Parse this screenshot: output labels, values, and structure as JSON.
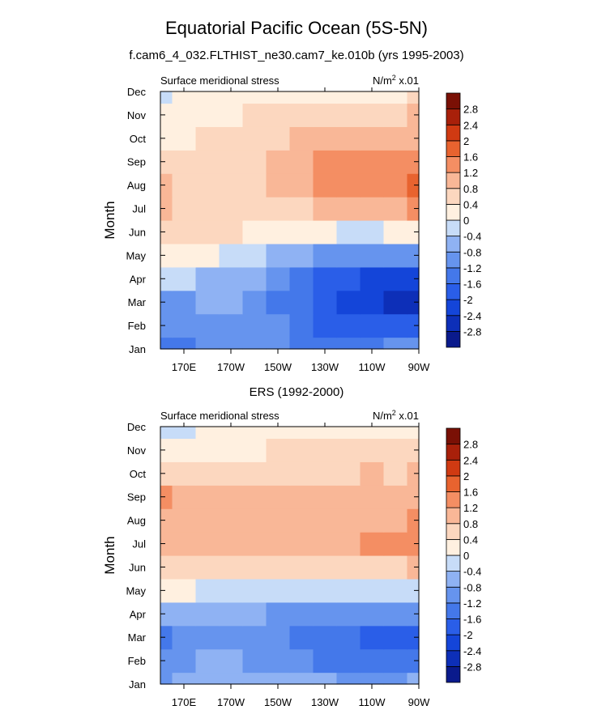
{
  "page": {
    "title": "Equatorial Pacific Ocean (5S-5N)",
    "subtitle": "f.cam6_4_032.FLTHIST_ne30.cam7_ke.010b (yrs 1995-2003)"
  },
  "chart_data": [
    {
      "type": "heatmap",
      "panel_id": "panel-1",
      "title": "f.cam6_4_032.FLTHIST_ne30.cam7_ke.010b (yrs 1995-2003)",
      "left_label": "Surface meridional stress",
      "units_label": "N/m",
      "units_sup": "2",
      "units_suffix": " x.01",
      "ylabel": "Month",
      "xlabel": "",
      "x": [
        160,
        170,
        180,
        190,
        200,
        210,
        220,
        230,
        240,
        250,
        260,
        270
      ],
      "xlim": [
        160,
        270
      ],
      "x_ticks": [
        170,
        190,
        210,
        230,
        250,
        270
      ],
      "x_tick_labels": [
        "170E",
        "170W",
        "150W",
        "130W",
        "110W",
        "90W"
      ],
      "y_tick_labels": [
        "Jan",
        "Feb",
        "Mar",
        "Apr",
        "May",
        "Jun",
        "Jul",
        "Aug",
        "Sep",
        "Oct",
        "Nov",
        "Dec"
      ],
      "ylim": [
        1,
        12
      ],
      "values": [
        [
          -1.4,
          -1.3,
          -1.0,
          -0.9,
          -0.9,
          -1.1,
          -1.3,
          -1.4,
          -1.3,
          -1.3,
          -1.2,
          -1.2
        ],
        [
          -1.2,
          -1.0,
          -0.9,
          -0.9,
          -1.0,
          -1.2,
          -1.5,
          -1.7,
          -1.8,
          -1.9,
          -2.0,
          -2.0
        ],
        [
          -0.9,
          -0.9,
          -0.8,
          -0.8,
          -0.9,
          -1.3,
          -1.6,
          -1.9,
          -2.1,
          -2.3,
          -2.5,
          -2.7
        ],
        [
          -0.3,
          -0.4,
          -0.5,
          -0.6,
          -0.8,
          -1.2,
          -1.5,
          -1.8,
          -2.0,
          -2.1,
          -2.2,
          -2.2
        ],
        [
          0.3,
          0.2,
          0.0,
          -0.1,
          -0.3,
          -0.5,
          -0.7,
          -0.9,
          -1.0,
          -1.1,
          -1.1,
          -1.0
        ],
        [
          0.6,
          0.6,
          0.5,
          0.4,
          0.3,
          0.2,
          0.1,
          0.0,
          -0.1,
          -0.1,
          0.0,
          0.2
        ],
        [
          0.8,
          0.7,
          0.7,
          0.6,
          0.6,
          0.6,
          0.7,
          0.8,
          0.9,
          1.0,
          1.1,
          1.3
        ],
        [
          0.9,
          0.7,
          0.7,
          0.6,
          0.6,
          0.8,
          1.0,
          1.2,
          1.3,
          1.4,
          1.5,
          1.7
        ],
        [
          0.7,
          0.6,
          0.6,
          0.6,
          0.6,
          0.9,
          1.1,
          1.2,
          1.3,
          1.3,
          1.3,
          1.5
        ],
        [
          0.3,
          0.3,
          0.4,
          0.4,
          0.5,
          0.7,
          0.8,
          0.9,
          0.9,
          0.8,
          0.9,
          1.0
        ],
        [
          0.2,
          0.2,
          0.3,
          0.3,
          0.4,
          0.4,
          0.5,
          0.5,
          0.5,
          0.5,
          0.5,
          0.8
        ],
        [
          -0.1,
          0.1,
          0.2,
          0.2,
          0.3,
          0.3,
          0.3,
          0.3,
          0.3,
          0.3,
          0.3,
          0.4
        ]
      ],
      "colorbar": {
        "levels": [
          -2.8,
          -2.4,
          -2,
          -1.6,
          -1.2,
          -0.8,
          -0.4,
          0,
          0.4,
          0.8,
          1.2,
          1.6,
          2,
          2.4,
          2.8
        ],
        "level_labels": [
          "-2.8",
          "-2.4",
          "-2",
          "-1.6",
          "-1.2",
          "-0.8",
          "-0.4",
          "0",
          "0.4",
          "0.8",
          "1.2",
          "1.6",
          "2",
          "2.4",
          "2.8"
        ],
        "colors": [
          "#0a1a8c",
          "#0d2fb8",
          "#1445d9",
          "#2a5ee8",
          "#4478ea",
          "#6694ee",
          "#8fb2f3",
          "#c7dcf8",
          "#fff0e0",
          "#fcd7bf",
          "#f9b797",
          "#f48e63",
          "#e8632f",
          "#d03a12",
          "#a8200a",
          "#7a1005"
        ]
      }
    },
    {
      "type": "heatmap",
      "panel_id": "panel-2",
      "title": "ERS (1992-2000)",
      "left_label": "Surface meridional stress",
      "units_label": "N/m",
      "units_sup": "2",
      "units_suffix": " x.01",
      "ylabel": "Month",
      "xlabel": "",
      "x": [
        160,
        170,
        180,
        190,
        200,
        210,
        220,
        230,
        240,
        250,
        260,
        270
      ],
      "xlim": [
        160,
        270
      ],
      "x_ticks": [
        170,
        190,
        210,
        230,
        250,
        270
      ],
      "x_tick_labels": [
        "170E",
        "170W",
        "150W",
        "130W",
        "110W",
        "90W"
      ],
      "y_tick_labels": [
        "Jan",
        "Feb",
        "Mar",
        "Apr",
        "May",
        "Jun",
        "Jul",
        "Aug",
        "Sep",
        "Oct",
        "Nov",
        "Dec"
      ],
      "ylim": [
        1,
        12
      ],
      "values": [
        [
          -0.9,
          -0.7,
          -0.6,
          -0.5,
          -0.5,
          -0.5,
          -0.7,
          -0.8,
          -0.9,
          -0.9,
          -0.9,
          -0.8
        ],
        [
          -1.2,
          -0.9,
          -0.8,
          -0.8,
          -0.9,
          -1.0,
          -1.1,
          -1.3,
          -1.4,
          -1.5,
          -1.6,
          -1.6
        ],
        [
          -1.4,
          -1.1,
          -0.9,
          -0.9,
          -1.0,
          -1.2,
          -1.3,
          -1.5,
          -1.6,
          -1.7,
          -1.8,
          -1.8
        ],
        [
          -0.6,
          -0.6,
          -0.6,
          -0.6,
          -0.7,
          -0.9,
          -1.0,
          -1.1,
          -1.2,
          -1.2,
          -1.2,
          -1.1
        ],
        [
          0.1,
          0.0,
          -0.1,
          -0.1,
          -0.2,
          -0.2,
          -0.3,
          -0.3,
          -0.3,
          -0.3,
          -0.3,
          -0.3
        ],
        [
          0.6,
          0.5,
          0.5,
          0.6,
          0.6,
          0.5,
          0.4,
          0.4,
          0.4,
          0.5,
          0.6,
          0.8
        ],
        [
          0.8,
          0.8,
          0.8,
          0.9,
          0.9,
          0.9,
          0.8,
          0.8,
          0.9,
          1.2,
          1.3,
          1.3
        ],
        [
          1.0,
          0.9,
          0.9,
          1.0,
          1.0,
          1.0,
          0.9,
          0.9,
          1.0,
          1.1,
          1.1,
          1.2
        ],
        [
          1.2,
          0.9,
          0.9,
          0.9,
          1.0,
          0.9,
          0.9,
          0.9,
          0.9,
          1.0,
          0.9,
          1.1
        ],
        [
          0.6,
          0.6,
          0.6,
          0.6,
          0.6,
          0.7,
          0.7,
          0.7,
          0.7,
          0.8,
          0.7,
          0.8
        ],
        [
          0.3,
          0.3,
          0.3,
          0.3,
          0.3,
          0.4,
          0.4,
          0.4,
          0.4,
          0.5,
          0.5,
          0.5
        ],
        [
          -0.1,
          -0.1,
          0.0,
          0.1,
          0.1,
          0.1,
          0.1,
          0.1,
          0.1,
          0.1,
          0.2,
          0.2
        ]
      ],
      "colorbar": {
        "levels": [
          -2.8,
          -2.4,
          -2,
          -1.6,
          -1.2,
          -0.8,
          -0.4,
          0,
          0.4,
          0.8,
          1.2,
          1.6,
          2,
          2.4,
          2.8
        ],
        "level_labels": [
          "-2.8",
          "-2.4",
          "-2",
          "-1.6",
          "-1.2",
          "-0.8",
          "-0.4",
          "0",
          "0.4",
          "0.8",
          "1.2",
          "1.6",
          "2",
          "2.4",
          "2.8"
        ],
        "colors": [
          "#0a1a8c",
          "#0d2fb8",
          "#1445d9",
          "#2a5ee8",
          "#4478ea",
          "#6694ee",
          "#8fb2f3",
          "#c7dcf8",
          "#fff0e0",
          "#fcd7bf",
          "#f9b797",
          "#f48e63",
          "#e8632f",
          "#d03a12",
          "#a8200a",
          "#7a1005"
        ]
      }
    }
  ]
}
